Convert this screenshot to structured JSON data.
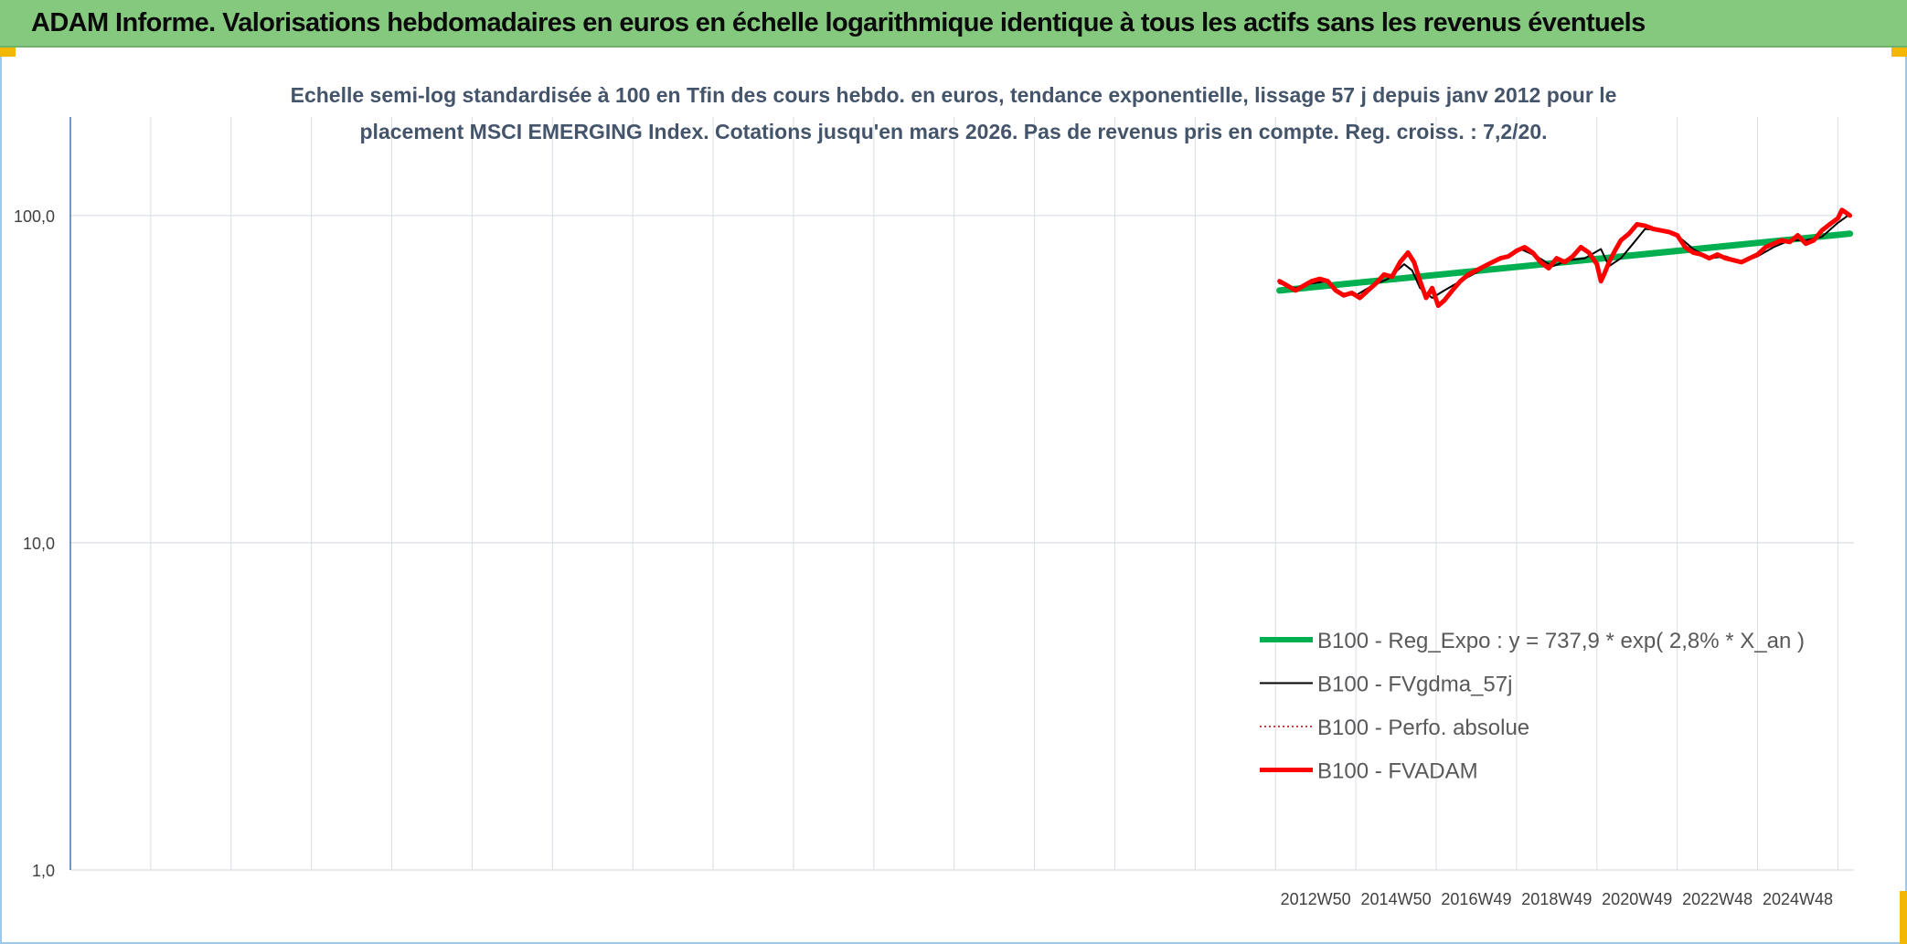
{
  "header": {
    "title": "ADAM Informe. Valorisations hebdomadaires en euros en échelle logarithmique identique à tous les actifs sans les revenus éventuels"
  },
  "colors": {
    "banner": "#84c97e",
    "corner_accent": "#f2b705",
    "regression": "#00b050",
    "moving_average": "#000000",
    "absolute_perf": "#c00000",
    "fvadam": "#ff0000",
    "grid": "#d9dee5",
    "y_axis": "#4472c4"
  },
  "chart_data": {
    "type": "line",
    "title_lines": [
      "Echelle semi-log standardisée à 100 en Tfin des cours hebdo. en euros, tendance exponentielle, lissage 57 j depuis janv 2012 pour le",
      "placement MSCI EMERGING Index. Cotations jusqu'en mars 2026. Pas de revenus pris en compte. Reg. croiss. : 7,2/20."
    ],
    "y_scale": "log",
    "ylim": [
      1,
      200
    ],
    "y_ticks": [
      {
        "value": 1,
        "label": "1,0"
      },
      {
        "value": 10,
        "label": "10,0"
      },
      {
        "value": 100,
        "label": "100,0"
      }
    ],
    "xlim": [
      1982.0,
      2026.4
    ],
    "x_tick_labels": [
      {
        "x": 2013.0,
        "label": "2012W50"
      },
      {
        "x": 2015.0,
        "label": "2014W50"
      },
      {
        "x": 2017.0,
        "label": "2016W49"
      },
      {
        "x": 2019.0,
        "label": "2018W49"
      },
      {
        "x": 2021.0,
        "label": "2020W49"
      },
      {
        "x": 2023.0,
        "label": "2022W48"
      },
      {
        "x": 2025.0,
        "label": "2024W48"
      }
    ],
    "grid": true,
    "legend_position": "bottom-right",
    "series": [
      {
        "name": "B100 - Reg_Expo : y = 737,9 * exp( 2,8% *  X_an )",
        "color": "#00b050",
        "style": "solid-thick",
        "x": [
          2012.1,
          2026.3
        ],
        "y": [
          59,
          88
        ]
      },
      {
        "name": "B100 - FVgdma_57j",
        "color": "#000000",
        "style": "solid",
        "x": [
          2012.1,
          2012.5,
          2012.9,
          2013.3,
          2013.6,
          2014.0,
          2014.4,
          2014.8,
          2015.2,
          2015.4,
          2015.6,
          2015.9,
          2016.2,
          2016.6,
          2017.0,
          2017.4,
          2017.8,
          2018.1,
          2018.5,
          2018.9,
          2019.3,
          2019.7,
          2020.1,
          2020.3,
          2020.6,
          2020.9,
          2021.2,
          2021.6,
          2022.0,
          2022.4,
          2022.8,
          2023.2,
          2023.6,
          2024.0,
          2024.4,
          2024.8,
          2025.2,
          2025.6,
          2026.0,
          2026.3
        ],
        "y": [
          62,
          60,
          62,
          63,
          58,
          57,
          61,
          64,
          71,
          68,
          60,
          56,
          59,
          63,
          67,
          72,
          75,
          79,
          75,
          70,
          73,
          74,
          79,
          70,
          74,
          82,
          91,
          90,
          87,
          79,
          74,
          75,
          72,
          75,
          80,
          84,
          84,
          86,
          95,
          101
        ]
      },
      {
        "name": "B100 - Perfo. absolue",
        "color": "#c00000",
        "style": "dotted",
        "x": [
          2012.1,
          2012.3,
          2012.5,
          2012.7,
          2012.9,
          2013.1,
          2013.3,
          2013.5,
          2013.7,
          2013.9,
          2014.1,
          2014.3,
          2014.5,
          2014.7,
          2014.9,
          2015.1,
          2015.3,
          2015.45,
          2015.6,
          2015.75,
          2015.9,
          2016.05,
          2016.2,
          2016.4,
          2016.6,
          2016.8,
          2017.0,
          2017.2,
          2017.4,
          2017.6,
          2017.8,
          2018.0,
          2018.2,
          2018.4,
          2018.6,
          2018.8,
          2019.0,
          2019.2,
          2019.4,
          2019.6,
          2019.8,
          2020.0,
          2020.1,
          2020.2,
          2020.3,
          2020.45,
          2020.6,
          2020.8,
          2021.0,
          2021.2,
          2021.4,
          2021.6,
          2021.8,
          2022.0,
          2022.2,
          2022.4,
          2022.6,
          2022.8,
          2023.0,
          2023.2,
          2023.4,
          2023.6,
          2023.8,
          2024.0,
          2024.2,
          2024.4,
          2024.6,
          2024.8,
          2025.0,
          2025.2,
          2025.4,
          2025.6,
          2025.8,
          2026.0,
          2026.1,
          2026.2,
          2026.3
        ],
        "y": [
          63,
          61,
          59,
          61,
          63,
          64,
          63,
          59,
          57,
          58,
          56,
          59,
          62,
          66,
          65,
          72,
          77,
          72,
          63,
          56,
          60,
          53,
          55,
          59,
          63,
          66,
          68,
          70,
          72,
          74,
          75,
          78,
          80,
          77,
          72,
          69,
          74,
          72,
          75,
          80,
          77,
          71,
          63,
          67,
          72,
          78,
          84,
          88,
          94,
          93,
          91,
          90,
          89,
          87,
          80,
          77,
          76,
          74,
          76,
          74,
          73,
          72,
          74,
          76,
          80,
          82,
          84,
          83,
          87,
          82,
          84,
          90,
          94,
          98,
          104,
          102,
          100
        ]
      },
      {
        "name": "B100 - FVADAM",
        "color": "#ff0000",
        "style": "solid-thick",
        "x": [
          2012.1,
          2012.3,
          2012.5,
          2012.7,
          2012.9,
          2013.1,
          2013.3,
          2013.5,
          2013.7,
          2013.9,
          2014.1,
          2014.3,
          2014.5,
          2014.7,
          2014.9,
          2015.1,
          2015.3,
          2015.45,
          2015.6,
          2015.75,
          2015.9,
          2016.05,
          2016.2,
          2016.4,
          2016.6,
          2016.8,
          2017.0,
          2017.2,
          2017.4,
          2017.6,
          2017.8,
          2018.0,
          2018.2,
          2018.4,
          2018.6,
          2018.8,
          2019.0,
          2019.2,
          2019.4,
          2019.6,
          2019.8,
          2020.0,
          2020.1,
          2020.2,
          2020.3,
          2020.45,
          2020.6,
          2020.8,
          2021.0,
          2021.2,
          2021.4,
          2021.6,
          2021.8,
          2022.0,
          2022.2,
          2022.4,
          2022.6,
          2022.8,
          2023.0,
          2023.2,
          2023.4,
          2023.6,
          2023.8,
          2024.0,
          2024.2,
          2024.4,
          2024.6,
          2024.8,
          2025.0,
          2025.2,
          2025.4,
          2025.6,
          2025.8,
          2026.0,
          2026.1,
          2026.2,
          2026.3
        ],
        "y": [
          63,
          61,
          59,
          61,
          63,
          64,
          63,
          59,
          57,
          58,
          56,
          59,
          62,
          66,
          65,
          72,
          77,
          72,
          63,
          56,
          60,
          53,
          55,
          59,
          63,
          66,
          68,
          70,
          72,
          74,
          75,
          78,
          80,
          77,
          72,
          69,
          74,
          72,
          75,
          80,
          77,
          71,
          63,
          67,
          72,
          78,
          84,
          88,
          94,
          93,
          91,
          90,
          89,
          87,
          80,
          77,
          76,
          74,
          76,
          74,
          73,
          72,
          74,
          76,
          80,
          82,
          84,
          83,
          87,
          82,
          84,
          90,
          94,
          98,
          104,
          102,
          100
        ]
      }
    ]
  }
}
